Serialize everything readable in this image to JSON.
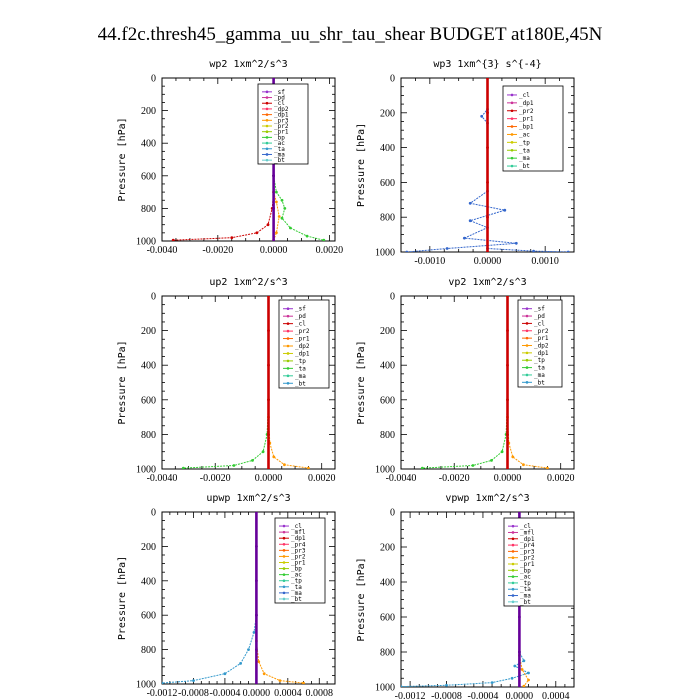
{
  "title": "44.f2c.thresh45_gamma_uu_shr_tau_shear  BUDGET at180E,45N",
  "chart_data": [
    {
      "type": "line",
      "title": "wp2   1xm^2/s^3",
      "ylabel": "Pressure [hPa]",
      "ylim": [
        1000,
        0
      ],
      "yticks": [
        0,
        200,
        400,
        600,
        800,
        1000
      ],
      "xlim": [
        -0.004,
        0.0022
      ],
      "xticks": [
        -0.004,
        -0.002,
        0.0,
        0.002
      ],
      "xticklabels": [
        "-0.0040",
        "-0.0020",
        "0.0000",
        "0.0020"
      ],
      "legend": [
        "_sf",
        "_pd",
        "_cl",
        "_dp2",
        "_dp1",
        "_pr3",
        "_pr2",
        "_pr1",
        "_bp",
        "_ac",
        "_ta",
        "_ma",
        "_bt"
      ],
      "series": [
        {
          "color": "#cc0000",
          "x": [
            0,
            0,
            0,
            0,
            0,
            -5e-05,
            -0.0002,
            -0.0006,
            -0.0015,
            -0.0036
          ],
          "y": [
            0,
            200,
            400,
            600,
            700,
            800,
            900,
            950,
            980,
            995
          ]
        },
        {
          "color": "#33cc33",
          "x": [
            0,
            0,
            0,
            0.0001,
            0.0003,
            0.0004,
            0.0003,
            0.0006,
            0.0012,
            0.0018
          ],
          "y": [
            0,
            300,
            600,
            700,
            750,
            800,
            860,
            920,
            970,
            995
          ]
        },
        {
          "color": "#ff9900",
          "x": [
            0,
            0,
            0,
            0.0001,
            0.0002,
            0.0001,
            0
          ],
          "y": [
            0,
            400,
            700,
            760,
            850,
            950,
            995
          ]
        },
        {
          "color": "#660099",
          "x": [
            0,
            0,
            0,
            0,
            0,
            0
          ],
          "y": [
            0,
            200,
            400,
            600,
            800,
            1000
          ]
        }
      ]
    },
    {
      "type": "line",
      "title": "wp3   1xm^{3} s^{-4}",
      "ylabel": "Pressure [hPa]",
      "ylim": [
        1000,
        0
      ],
      "yticks": [
        0,
        200,
        400,
        600,
        800,
        1000
      ],
      "xlim": [
        -0.0015,
        0.0015
      ],
      "xticks": [
        -0.001,
        0.0,
        0.001
      ],
      "xticklabels": [
        "-0.0010",
        "0.0000",
        "0.0010"
      ],
      "legend": [
        "_cl",
        "_dp1",
        "_pr2",
        "_pr1",
        "_bp1",
        "_ac",
        "_tp",
        "_ta",
        "_ma",
        "_bt"
      ],
      "series": [
        {
          "color": "#3366cc",
          "x": [
            0,
            0,
            -0.0001,
            0,
            0,
            -0.0003,
            0.0003,
            -0.0003,
            0,
            -0.0004,
            0.0005,
            -0.0007,
            -0.0014
          ],
          "y": [
            0,
            180,
            220,
            260,
            650,
            720,
            760,
            820,
            860,
            920,
            950,
            980,
            1000
          ]
        },
        {
          "color": "#3366cc",
          "x": [
            0,
            0.0008,
            0.0014
          ],
          "y": [
            980,
            995,
            1000
          ]
        },
        {
          "color": "#cc0000",
          "x": [
            0,
            0,
            0,
            0,
            0,
            0
          ],
          "y": [
            0,
            200,
            400,
            600,
            800,
            1000
          ]
        }
      ]
    },
    {
      "type": "line",
      "title": "up2   1xm^2/s^3",
      "ylabel": "Pressure [hPa]",
      "ylim": [
        1000,
        0
      ],
      "yticks": [
        0,
        200,
        400,
        600,
        800,
        1000
      ],
      "xlim": [
        -0.004,
        0.0025
      ],
      "xticks": [
        -0.004,
        -0.002,
        0.0,
        0.002
      ],
      "xticklabels": [
        "-0.0040",
        "-0.0020",
        "0.0000",
        "0.0020"
      ],
      "legend": [
        "_sf",
        "_pd",
        "_cl",
        "_pr2",
        "_pr1",
        "_dp2",
        "_dp1",
        "_tp",
        "_ta",
        "_ma",
        "_bt"
      ],
      "series": [
        {
          "color": "#33cc33",
          "x": [
            0,
            0,
            -5e-05,
            -0.0002,
            -0.0006,
            -0.0013,
            -0.0032
          ],
          "y": [
            0,
            600,
            800,
            900,
            950,
            980,
            995
          ]
        },
        {
          "color": "#ff9900",
          "x": [
            0,
            0,
            5e-05,
            0.0002,
            0.0006,
            0.0015
          ],
          "y": [
            0,
            700,
            850,
            930,
            975,
            995
          ]
        },
        {
          "color": "#cc0000",
          "x": [
            0,
            0,
            0,
            0,
            0,
            0
          ],
          "y": [
            0,
            200,
            400,
            600,
            800,
            1000
          ]
        }
      ]
    },
    {
      "type": "line",
      "title": "vp2   1xm^2/s^3",
      "ylabel": "Pressure [hPa]",
      "ylim": [
        1000,
        0
      ],
      "yticks": [
        0,
        200,
        400,
        600,
        800,
        1000
      ],
      "xlim": [
        -0.004,
        0.0025
      ],
      "xticks": [
        -0.004,
        -0.002,
        0.0,
        0.002
      ],
      "xticklabels": [
        "-0.0040",
        "-0.0020",
        "0.0000",
        "0.0020"
      ],
      "legend": [
        "_sf",
        "_pd",
        "_cl",
        "_pr2",
        "_pr1",
        "_dp2",
        "_dp1",
        "_tp",
        "_ta",
        "_ma",
        "_bt"
      ],
      "series": [
        {
          "color": "#33cc33",
          "x": [
            0,
            0,
            -5e-05,
            -0.0002,
            -0.0006,
            -0.0013,
            -0.0032
          ],
          "y": [
            0,
            600,
            800,
            900,
            950,
            980,
            995
          ]
        },
        {
          "color": "#ff9900",
          "x": [
            0,
            0,
            5e-05,
            0.0002,
            0.0006,
            0.0015
          ],
          "y": [
            0,
            700,
            850,
            930,
            975,
            995
          ]
        },
        {
          "color": "#cc0000",
          "x": [
            0,
            0,
            0,
            0,
            0,
            0
          ],
          "y": [
            0,
            200,
            400,
            600,
            800,
            1000
          ]
        }
      ]
    },
    {
      "type": "line",
      "title": "upwp   1xm^2/s^3",
      "ylabel": "Pressure [hPa]",
      "ylim": [
        1000,
        0
      ],
      "yticks": [
        0,
        200,
        400,
        600,
        800,
        1000
      ],
      "xlim": [
        -0.0012,
        0.001
      ],
      "xticks": [
        -0.0012,
        -0.0008,
        -0.0004,
        0.0,
        0.0004,
        0.0008
      ],
      "xticklabels": [
        "-0.0012",
        "-0.0008",
        "-0.0004",
        "0.0000",
        "0.0004",
        "0.0008"
      ],
      "legend": [
        "_cl",
        "_mfl",
        "_dp1",
        "_pr4",
        "_pr3",
        "_pr2",
        "_pr1",
        "_bp",
        "_ac",
        "_tp",
        "_ta",
        "_ma",
        "_bt"
      ],
      "series": [
        {
          "color": "#3399cc",
          "x": [
            0,
            0,
            -3e-05,
            -0.0001,
            -0.0002,
            -0.0004,
            -0.0008,
            -0.0012
          ],
          "y": [
            0,
            600,
            700,
            800,
            880,
            940,
            980,
            995
          ]
        },
        {
          "color": "#ff9900",
          "x": [
            0,
            0,
            3e-05,
            0.0001,
            0.0003,
            0.0006
          ],
          "y": [
            0,
            750,
            870,
            940,
            980,
            995
          ]
        },
        {
          "color": "#660099",
          "x": [
            0,
            0,
            0,
            0,
            0,
            0
          ],
          "y": [
            0,
            200,
            400,
            600,
            800,
            1000
          ]
        }
      ]
    },
    {
      "type": "line",
      "title": "vpwp   1xm^2/s^3",
      "ylabel": "Pressure [hPa]",
      "ylim": [
        1000,
        0
      ],
      "yticks": [
        0,
        200,
        400,
        600,
        800,
        1000
      ],
      "xlim": [
        -0.0013,
        0.0006
      ],
      "xticks": [
        -0.0012,
        -0.0008,
        -0.0004,
        0.0,
        0.0004
      ],
      "xticklabels": [
        "-0.0012",
        "-0.0008",
        "-0.0004",
        "0.0000",
        "0.0004"
      ],
      "legend": [
        "_cl",
        "_mfl",
        "_dp1",
        "_pr4",
        "_pr3",
        "_pr2",
        "_pr1",
        "_bp",
        "_ac",
        "_tp",
        "_ta",
        "_ma",
        "_bt"
      ],
      "series": [
        {
          "color": "#3399cc",
          "x": [
            0,
            0,
            5e-05,
            -5e-05,
            0.0001,
            -8e-05,
            -0.0003,
            -0.0008,
            -0.0013
          ],
          "y": [
            0,
            800,
            850,
            880,
            920,
            950,
            975,
            990,
            998
          ]
        },
        {
          "color": "#ff9900",
          "x": [
            0,
            0,
            3e-05,
            0.0001,
            5e-05
          ],
          "y": [
            0,
            820,
            900,
            960,
            995
          ]
        },
        {
          "color": "#660099",
          "x": [
            0,
            0,
            0,
            0,
            0,
            0
          ],
          "y": [
            0,
            200,
            400,
            600,
            800,
            1000
          ]
        }
      ]
    }
  ],
  "colors": {
    "legend": [
      "#9933cc",
      "#cc3399",
      "#cc0000",
      "#ff3366",
      "#ff6600",
      "#ff9900",
      "#cccc00",
      "#99cc00",
      "#33cc33",
      "#33cc99",
      "#3399cc",
      "#3366cc",
      "#66cccc",
      "#00cccc"
    ],
    "axis": "#000000"
  }
}
